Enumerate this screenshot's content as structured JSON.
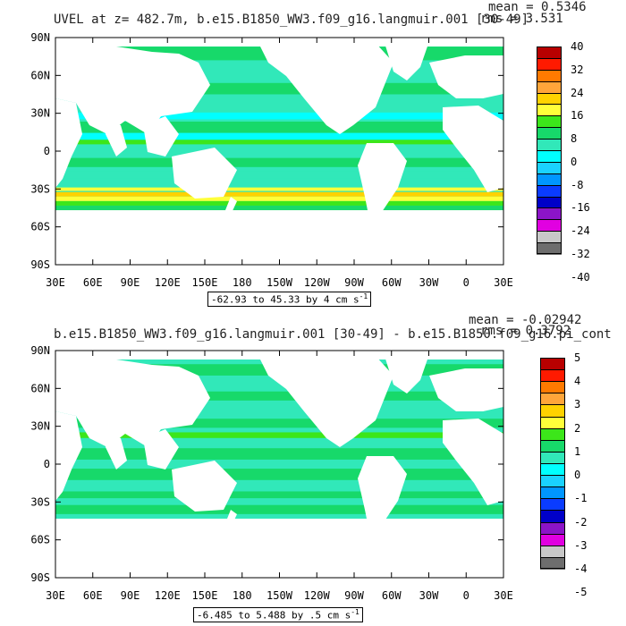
{
  "top": {
    "title": "UVEL at z= 482.7m, b.e15.B1850_WW3.f09_g16.langmuir.001 [30-49]",
    "mean": "mean = 0.5346",
    "rms": "rms = 3.531",
    "range_text": "-62.93 to 45.33 by 4 cm s",
    "range_exp": "-1",
    "colorbar_labels": [
      "40",
      "32",
      "24",
      "16",
      "8",
      "0",
      "-8",
      "-16",
      "-24",
      "-32",
      "-40"
    ],
    "colors": [
      "#b80000",
      "#ff1a00",
      "#ff7a00",
      "#ffa53a",
      "#ffd200",
      "#ffff3a",
      "#3ce61a",
      "#17d96a",
      "#31e8b9",
      "#00ffff",
      "#1ad2ff",
      "#0096ff",
      "#0a3cff",
      "#0000c8",
      "#8c14c8",
      "#e100e1",
      "#c8c8c8",
      "#6e6e6e"
    ]
  },
  "bottom": {
    "title": "b.e15.B1850_WW3.f09_g16.langmuir.001 [30-49] - b.e15.B1850.f09_g16.pi_cont",
    "mean": "mean = -0.02942",
    "rms": "rms = 0.3792",
    "range_text": "-6.485 to 5.488 by .5 cm s",
    "range_exp": "-1",
    "colorbar_labels": [
      "5",
      "4",
      "3",
      "2",
      "1",
      "0",
      "-1",
      "-2",
      "-3",
      "-4",
      "-5"
    ],
    "colors": [
      "#b80000",
      "#ff1a00",
      "#ff7a00",
      "#ffa53a",
      "#ffd200",
      "#ffff3a",
      "#3ce61a",
      "#17d96a",
      "#31e8b9",
      "#00ffff",
      "#1ad2ff",
      "#0096ff",
      "#0a3cff",
      "#0000c8",
      "#8c14c8",
      "#e100e1",
      "#c8c8c8",
      "#6e6e6e"
    ]
  },
  "axes": {
    "lat_labels": [
      "90N",
      "60N",
      "30N",
      "0",
      "30S",
      "60S",
      "90S"
    ],
    "lon_labels": [
      "30E",
      "60E",
      "90E",
      "120E",
      "150E",
      "180",
      "150W",
      "120W",
      "90W",
      "60W",
      "30W",
      "0",
      "30E"
    ]
  },
  "chart_data": [
    {
      "type": "heatmap",
      "title": "UVEL at z= 482.7m, b.e15.B1850_WW3.f09_g16.langmuir.001 [30-49]",
      "mean": 0.5346,
      "rms": 3.531,
      "range": [
        -62.93,
        45.33
      ],
      "interval": 4,
      "units": "cm s-1",
      "colorbar_levels": [
        40,
        32,
        24,
        16,
        8,
        0,
        -8,
        -16,
        -24,
        -32,
        -40
      ],
      "xlim": [
        "30E",
        "30E"
      ],
      "ylim": [
        "90S",
        "90N"
      ]
    },
    {
      "type": "heatmap",
      "title": "b.e15.B1850_WW3.f09_g16.langmuir.001 [30-49] - b.e15.B1850.f09_g16.pi_cont",
      "mean": -0.02942,
      "rms": 0.3792,
      "range": [
        -6.485,
        5.488
      ],
      "interval": 0.5,
      "units": "cm s-1",
      "colorbar_levels": [
        5,
        4,
        3,
        2,
        1,
        0,
        -1,
        -2,
        -3,
        -4,
        -5
      ],
      "xlim": [
        "30E",
        "30E"
      ],
      "ylim": [
        "90S",
        "90N"
      ]
    }
  ]
}
